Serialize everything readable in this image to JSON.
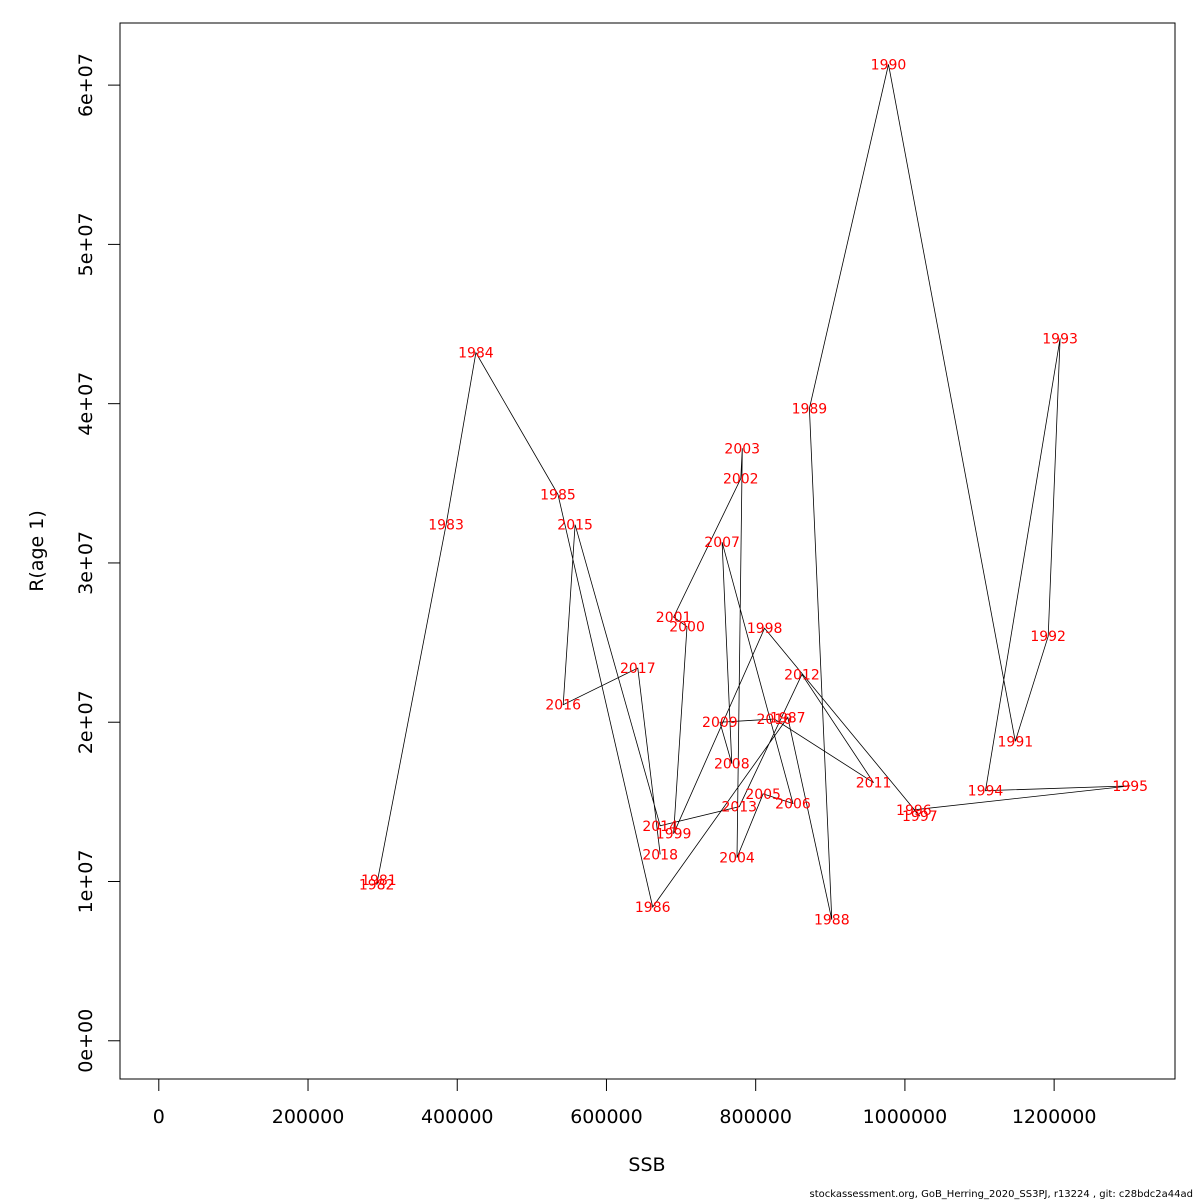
{
  "colors": {
    "background": "#ffffff",
    "axis": "#000000",
    "line": "#000000",
    "year_label": "#ff0000"
  },
  "caption": "stockassessment.org, GoB_Herring_2020_SS3PJ, r13224 , git: c28bdc2a44ad",
  "chart_data": {
    "type": "line",
    "title": "",
    "xlabel": "SSB",
    "ylabel": "R(age 1)",
    "xlim": [
      -52000,
      1362000
    ],
    "ylim": [
      -2400000,
      63900000
    ],
    "x_ticks": [
      0,
      200000,
      400000,
      600000,
      800000,
      1000000,
      1200000
    ],
    "x_tick_labels": [
      "0",
      "200000",
      "400000",
      "600000",
      "800000",
      "1000000",
      "1200000"
    ],
    "y_ticks": [
      0,
      10000000,
      20000000,
      30000000,
      40000000,
      50000000,
      60000000
    ],
    "y_tick_labels": [
      "0e+00",
      "1e+07",
      "2e+07",
      "3e+07",
      "4e+07",
      "5e+07",
      "6e+07"
    ],
    "grid": false,
    "legend": "none",
    "series": [
      {
        "points": [
          {
            "year": "1981",
            "ssb": 295000,
            "r": 10100000
          },
          {
            "year": "1982",
            "ssb": 292000,
            "r": 9800000
          },
          {
            "year": "1983",
            "ssb": 385000,
            "r": 32400000
          },
          {
            "year": "1984",
            "ssb": 425000,
            "r": 43200000
          },
          {
            "year": "1985",
            "ssb": 535000,
            "r": 34300000
          },
          {
            "year": "1986",
            "ssb": 662000,
            "r": 8400000
          },
          {
            "year": "1987",
            "ssb": 843000,
            "r": 20300000
          },
          {
            "year": "1988",
            "ssb": 902000,
            "r": 7600000
          },
          {
            "year": "1989",
            "ssb": 872000,
            "r": 39700000
          },
          {
            "year": "1990",
            "ssb": 978000,
            "r": 61300000
          },
          {
            "year": "1991",
            "ssb": 1148000,
            "r": 18800000
          },
          {
            "year": "1992",
            "ssb": 1192000,
            "r": 25400000
          },
          {
            "year": "1993",
            "ssb": 1208000,
            "r": 44100000
          },
          {
            "year": "1994",
            "ssb": 1108000,
            "r": 15700000
          },
          {
            "year": "1995",
            "ssb": 1302000,
            "r": 16000000
          },
          {
            "year": "1996",
            "ssb": 1012000,
            "r": 14500000
          },
          {
            "year": "1997",
            "ssb": 1020000,
            "r": 14100000
          },
          {
            "year": "1998",
            "ssb": 812000,
            "r": 25900000
          },
          {
            "year": "1999",
            "ssb": 690000,
            "r": 13000000
          },
          {
            "year": "2000",
            "ssb": 708000,
            "r": 26000000
          },
          {
            "year": "2001",
            "ssb": 690000,
            "r": 26600000
          },
          {
            "year": "2002",
            "ssb": 780000,
            "r": 35300000
          },
          {
            "year": "2003",
            "ssb": 782000,
            "r": 37200000
          },
          {
            "year": "2004",
            "ssb": 775000,
            "r": 11500000
          },
          {
            "year": "2005",
            "ssb": 810000,
            "r": 15500000
          },
          {
            "year": "2006",
            "ssb": 850000,
            "r": 14900000
          },
          {
            "year": "2007",
            "ssb": 755000,
            "r": 31300000
          },
          {
            "year": "2008",
            "ssb": 768000,
            "r": 17400000
          },
          {
            "year": "2009",
            "ssb": 752000,
            "r": 20000000
          },
          {
            "year": "2010",
            "ssb": 825000,
            "r": 20200000
          },
          {
            "year": "2011",
            "ssb": 958000,
            "r": 16200000
          },
          {
            "year": "2012",
            "ssb": 862000,
            "r": 23000000
          },
          {
            "year": "2013",
            "ssb": 778000,
            "r": 14700000
          },
          {
            "year": "2014",
            "ssb": 672000,
            "r": 13500000
          },
          {
            "year": "2015",
            "ssb": 558000,
            "r": 32400000
          },
          {
            "year": "2016",
            "ssb": 542000,
            "r": 21100000
          },
          {
            "year": "2017",
            "ssb": 642000,
            "r": 23400000
          },
          {
            "year": "2018",
            "ssb": 672000,
            "r": 11700000
          }
        ]
      }
    ]
  }
}
